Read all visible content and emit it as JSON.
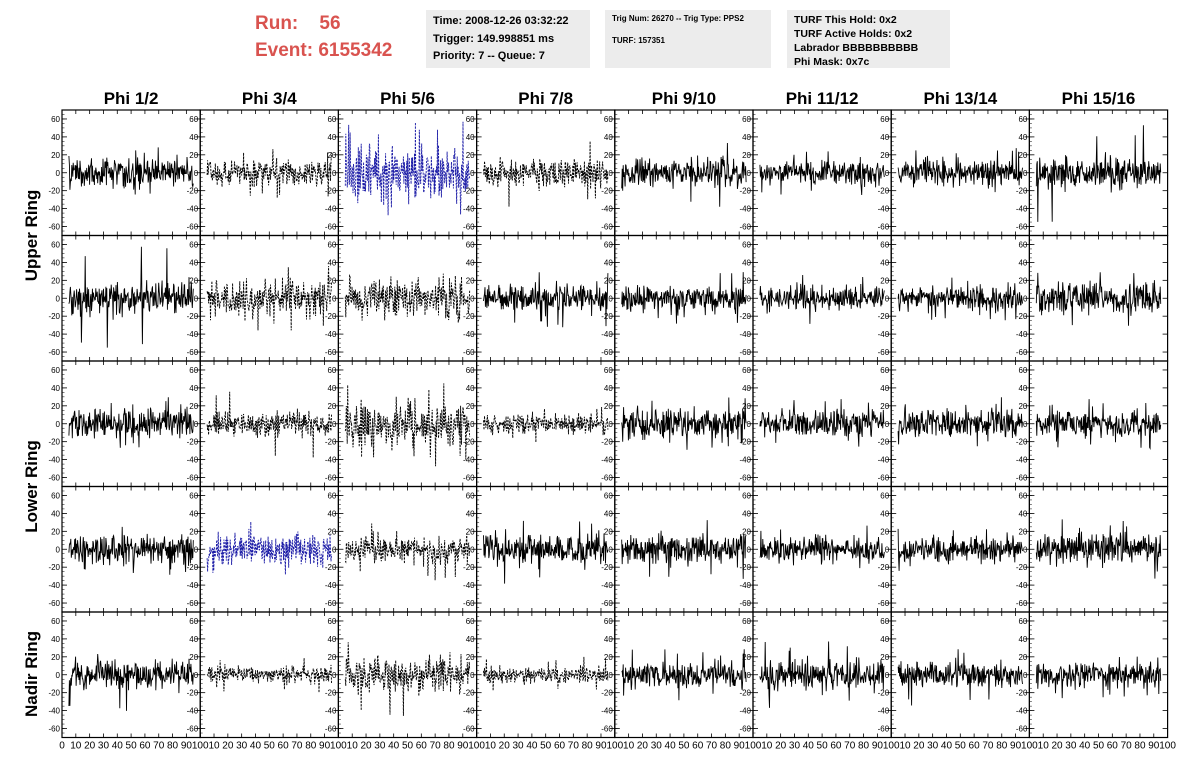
{
  "header": {
    "run_label": "Run:",
    "run_value": "56",
    "event_label": "Event:",
    "event_value": "6155342",
    "time": "Time: 2008-12-26 03:32:22",
    "trigger": "Trigger: 149.998851 ms",
    "priority": "Priority: 7 -- Queue: 7",
    "trig_num": "Trig Num: 26270 -- Trig Type: PPS2",
    "turf": "TURF: 157351",
    "turf_this_hold": "TURF This Hold: 0x2",
    "turf_active_holds": "TURF Active Holds: 0x2",
    "labrador": "Labrador BBBBBBBBBB",
    "phi_mask": "Phi Mask: 0x7c"
  },
  "chart_data": {
    "type": "line",
    "columns": [
      "Phi 1/2",
      "Phi 3/4",
      "Phi 5/6",
      "Phi 7/8",
      "Phi 9/10",
      "Phi 11/12",
      "Phi 13/14",
      "Phi 15/16"
    ],
    "rows": [
      "Upper Ring",
      "Upper Ring",
      "Lower Ring",
      "Lower Ring",
      "Nadir Ring"
    ],
    "row_labels": [
      "Upper Ring",
      "Lower Ring",
      "Nadir Ring"
    ],
    "ylim": [
      -70,
      70
    ],
    "yticks": [
      -60,
      -40,
      -20,
      0,
      20,
      40,
      60
    ],
    "xlim": [
      0,
      100
    ],
    "xticks": [
      0,
      10,
      20,
      30,
      40,
      50,
      60,
      70,
      80,
      90,
      100
    ],
    "x_tick_labels": [
      "0",
      "10",
      "20",
      "30",
      "40",
      "50",
      "60",
      "70",
      "80",
      "90",
      "100"
    ],
    "samples_per_trace": 260,
    "trace_colors": {
      "solid": "#000000",
      "dashed": "#000000",
      "highlight": "#1a1aa6"
    },
    "panels": [
      [
        {
          "style": "solid",
          "amp": 13,
          "peak": 30
        },
        {
          "style": "dashed",
          "amp": 11,
          "peak": 28
        },
        {
          "style": "highlight",
          "amp": 24,
          "peak": 60
        },
        {
          "style": "dashed",
          "amp": 12,
          "peak": 40
        },
        {
          "style": "solid",
          "amp": 13,
          "peak": 40
        },
        {
          "style": "solid",
          "amp": 10,
          "peak": 25
        },
        {
          "style": "solid",
          "amp": 11,
          "peak": 28
        },
        {
          "style": "solid",
          "amp": 13,
          "peak": 55
        }
      ],
      [
        {
          "style": "solid",
          "amp": 14,
          "peak": 62
        },
        {
          "style": "dashed",
          "amp": 16,
          "peak": 38
        },
        {
          "style": "dashed",
          "amp": 15,
          "peak": 30
        },
        {
          "style": "solid",
          "amp": 12,
          "peak": 35
        },
        {
          "style": "solid",
          "amp": 11,
          "peak": 30
        },
        {
          "style": "solid",
          "amp": 11,
          "peak": 30
        },
        {
          "style": "solid",
          "amp": 10,
          "peak": 25
        },
        {
          "style": "solid",
          "amp": 13,
          "peak": 35
        }
      ],
      [
        {
          "style": "solid",
          "amp": 13,
          "peak": 30
        },
        {
          "style": "dashed",
          "amp": 10,
          "peak": 40
        },
        {
          "style": "dashed",
          "amp": 18,
          "peak": 48
        },
        {
          "style": "dashed",
          "amp": 8,
          "peak": 22
        },
        {
          "style": "solid",
          "amp": 13,
          "peak": 30
        },
        {
          "style": "solid",
          "amp": 11,
          "peak": 28
        },
        {
          "style": "solid",
          "amp": 13,
          "peak": 30
        },
        {
          "style": "solid",
          "amp": 11,
          "peak": 28
        }
      ],
      [
        {
          "style": "solid",
          "amp": 13,
          "peak": 30
        },
        {
          "style": "highlight",
          "amp": 15,
          "peak": 38
        },
        {
          "style": "dashed",
          "amp": 13,
          "peak": 35
        },
        {
          "style": "solid",
          "amp": 13,
          "peak": 40
        },
        {
          "style": "solid",
          "amp": 13,
          "peak": 38
        },
        {
          "style": "solid",
          "amp": 11,
          "peak": 28
        },
        {
          "style": "solid",
          "amp": 11,
          "peak": 30
        },
        {
          "style": "solid",
          "amp": 13,
          "peak": 35
        }
      ],
      [
        {
          "style": "solid",
          "amp": 13,
          "peak": 45
        },
        {
          "style": "dashed",
          "amp": 7,
          "peak": 20
        },
        {
          "style": "dashed",
          "amp": 16,
          "peak": 50
        },
        {
          "style": "dashed",
          "amp": 7,
          "peak": 20
        },
        {
          "style": "solid",
          "amp": 11,
          "peak": 30
        },
        {
          "style": "solid",
          "amp": 14,
          "peak": 38
        },
        {
          "style": "solid",
          "amp": 11,
          "peak": 35
        },
        {
          "style": "solid",
          "amp": 11,
          "peak": 28
        }
      ]
    ]
  }
}
